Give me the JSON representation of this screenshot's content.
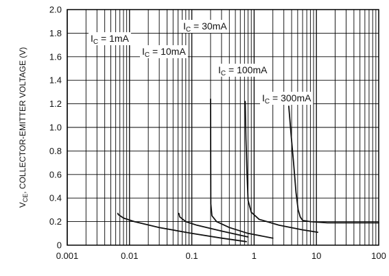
{
  "chart_data": {
    "type": "line",
    "title": "",
    "xlabel": "",
    "ylabel": "V",
    "ylabel_sub": "CE",
    "ylabel_rest": ", COLLECTOR-EMITTER VOLTAGE (V)",
    "x_scale": "log",
    "xlim": [
      0.001,
      100
    ],
    "ylim": [
      0,
      2.0
    ],
    "grid": true,
    "x_ticks": [
      {
        "value": 0.001,
        "label": "0.001"
      },
      {
        "value": 0.01,
        "label": "0.01"
      },
      {
        "value": 0.1,
        "label": "0.1"
      },
      {
        "value": 1,
        "label": "1"
      },
      {
        "value": 10,
        "label": "10"
      },
      {
        "value": 100,
        "label": "100"
      }
    ],
    "y_ticks": [
      {
        "value": 0,
        "label": "0"
      },
      {
        "value": 0.2,
        "label": "0.2"
      },
      {
        "value": 0.4,
        "label": "0.4"
      },
      {
        "value": 0.6,
        "label": "0.6"
      },
      {
        "value": 0.8,
        "label": "0.8"
      },
      {
        "value": 1.0,
        "label": "1.0"
      },
      {
        "value": 1.2,
        "label": "1.2"
      },
      {
        "value": 1.4,
        "label": "1.4"
      },
      {
        "value": 1.6,
        "label": "1.6"
      },
      {
        "value": 1.8,
        "label": "1.8"
      },
      {
        "value": 2.0,
        "label": "2.0"
      }
    ],
    "series": [
      {
        "name": "I",
        "name_sub": "C",
        "name_rest": " = 1mA",
        "x": [
          0.0065,
          0.0066,
          0.008,
          0.012,
          0.03,
          0.1,
          0.3,
          0.75
        ],
        "y": [
          0.27,
          0.26,
          0.23,
          0.2,
          0.15,
          0.1,
          0.06,
          0.03
        ]
      },
      {
        "name": "I",
        "name_sub": "C",
        "name_rest": " = 10mA",
        "x": [
          0.062,
          0.064,
          0.08,
          0.12,
          0.3,
          0.8
        ],
        "y": [
          0.27,
          0.24,
          0.2,
          0.17,
          0.12,
          0.07
        ]
      },
      {
        "name": "I",
        "name_sub": "C",
        "name_rest": " = 30mA",
        "x": [
          0.2,
          0.202,
          0.21,
          0.25,
          0.4,
          0.8,
          2.0
        ],
        "y": [
          1.24,
          0.35,
          0.25,
          0.2,
          0.15,
          0.1,
          0.06
        ]
      },
      {
        "name": "I",
        "name_sub": "C",
        "name_rest": " = 100mA",
        "x": [
          0.72,
          0.74,
          0.77,
          0.8,
          0.9,
          1.2,
          2.5,
          6,
          10.5
        ],
        "y": [
          1.22,
          0.9,
          0.6,
          0.38,
          0.28,
          0.22,
          0.17,
          0.13,
          0.11
        ]
      },
      {
        "name": "I",
        "name_sub": "C",
        "name_rest": " = 300mA",
        "x": [
          3.6,
          3.9,
          4.3,
          4.7,
          5.1,
          5.5,
          6.0,
          8.0,
          15,
          40,
          100
        ],
        "y": [
          1.18,
          0.95,
          0.7,
          0.45,
          0.3,
          0.24,
          0.21,
          0.2,
          0.19,
          0.19,
          0.19
        ]
      }
    ]
  }
}
